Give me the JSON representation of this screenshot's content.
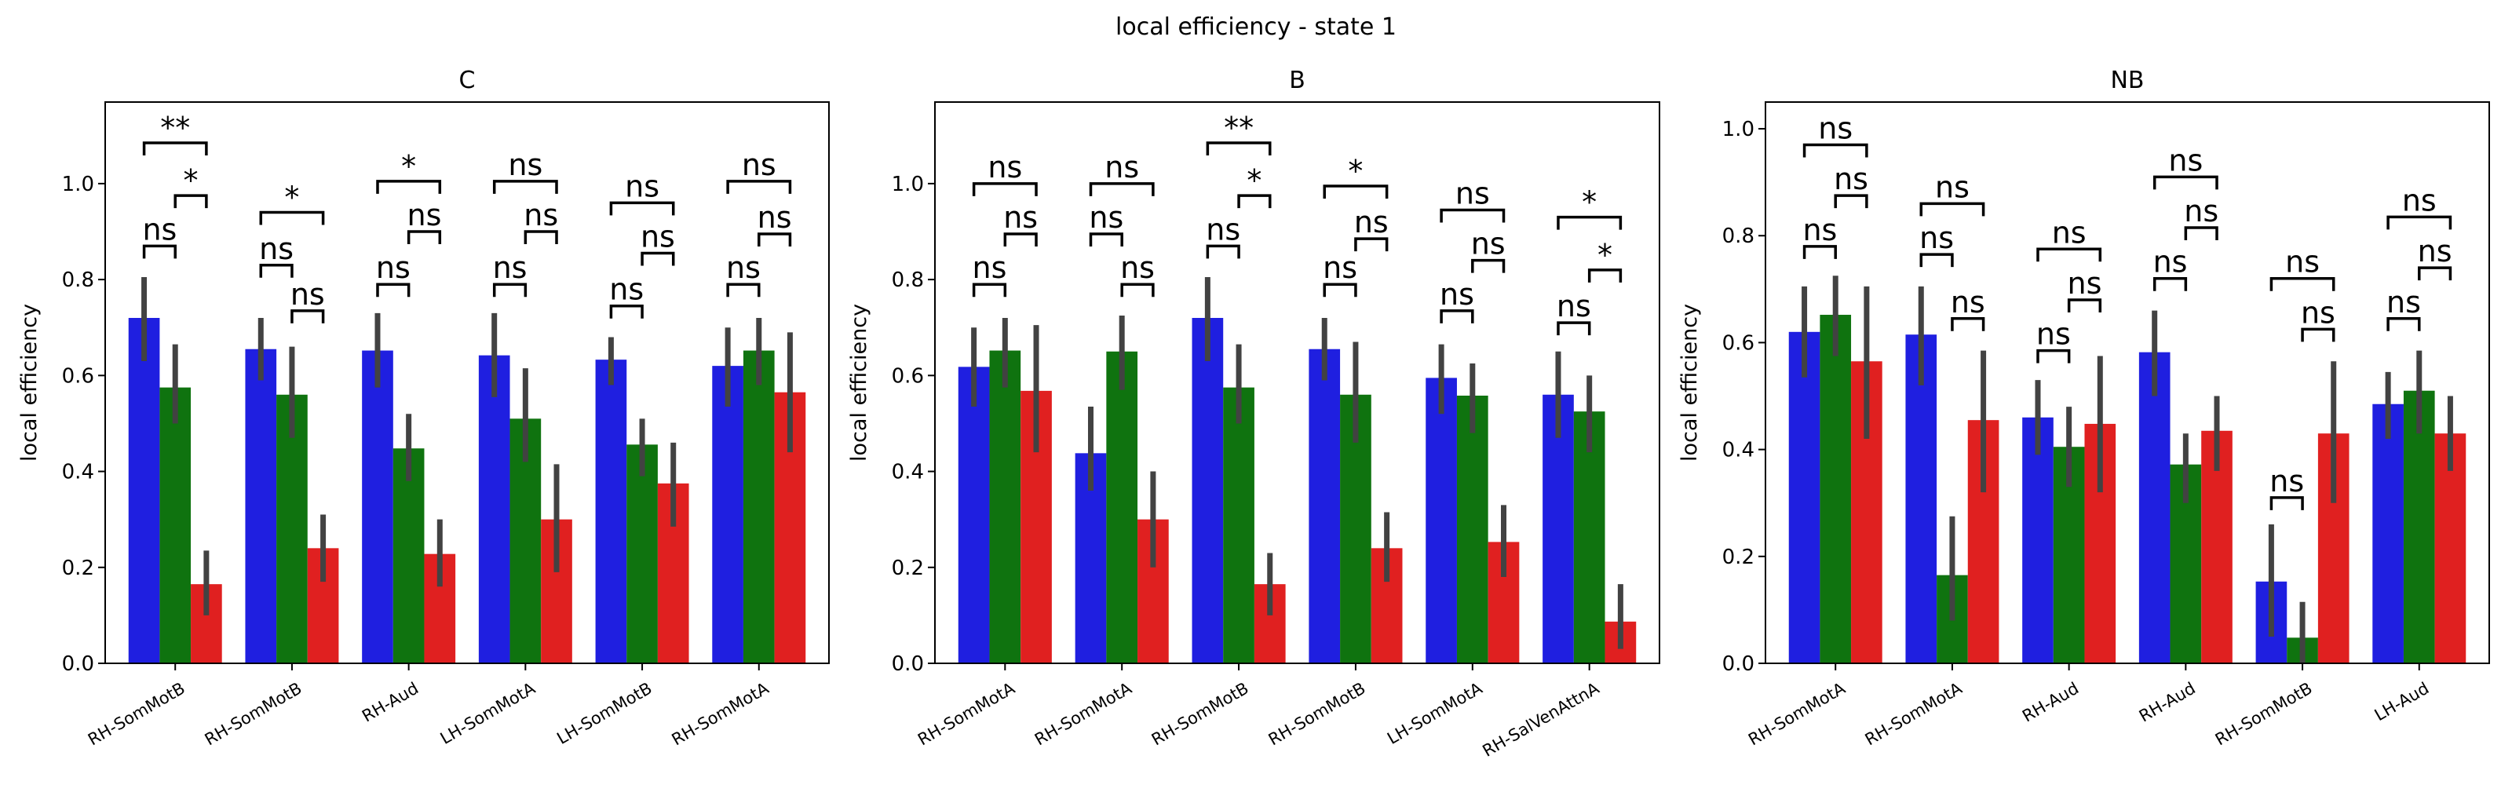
{
  "chart_data": {
    "type": "bar",
    "title": "local efficiency - state 1",
    "series_colors": [
      "#1f1fe0",
      "#0f730f",
      "#e02020"
    ],
    "panels": [
      {
        "title": "C",
        "ylabel": "local efficiency",
        "ylim": [
          0,
          1.17
        ],
        "yticks": [
          "0.0",
          "0.2",
          "0.4",
          "0.6",
          "0.8",
          "1.0"
        ],
        "categories": [
          "RH-SomMotB",
          "RH-SomMotB",
          "RH-Aud",
          "LH-SomMotA",
          "LH-SomMotB",
          "RH-SomMotA"
        ],
        "values": [
          [
            0.72,
            0.575,
            0.165
          ],
          [
            0.655,
            0.56,
            0.24
          ],
          [
            0.652,
            0.448,
            0.228
          ],
          [
            0.642,
            0.51,
            0.3
          ],
          [
            0.633,
            0.456,
            0.375
          ],
          [
            0.62,
            0.652,
            0.565
          ]
        ],
        "errors": [
          [
            [
              0.63,
              0.805
            ],
            [
              0.5,
              0.665
            ],
            [
              0.1,
              0.235
            ]
          ],
          [
            [
              0.59,
              0.72
            ],
            [
              0.47,
              0.66
            ],
            [
              0.17,
              0.31
            ]
          ],
          [
            [
              0.575,
              0.73
            ],
            [
              0.38,
              0.52
            ],
            [
              0.16,
              0.3
            ]
          ],
          [
            [
              0.555,
              0.73
            ],
            [
              0.42,
              0.615
            ],
            [
              0.19,
              0.415
            ]
          ],
          [
            [
              0.58,
              0.68
            ],
            [
              0.39,
              0.51
            ],
            [
              0.285,
              0.46
            ]
          ],
          [
            [
              0.535,
              0.7
            ],
            [
              0.58,
              0.72
            ],
            [
              0.44,
              0.69
            ]
          ]
        ],
        "annotations": [
          {
            "pair": [
              0,
              1
            ],
            "label": "ns"
          },
          {
            "pair": [
              1,
              2
            ],
            "label": "*"
          },
          {
            "pair": [
              0,
              2
            ],
            "label": "**"
          },
          {
            "pair": [
              0,
              1
            ],
            "label": "ns"
          },
          {
            "pair": [
              1,
              2
            ],
            "label": "ns"
          },
          {
            "pair": [
              0,
              2
            ],
            "label": "*"
          },
          {
            "pair": [
              0,
              1
            ],
            "label": "ns"
          },
          {
            "pair": [
              1,
              2
            ],
            "label": "ns"
          },
          {
            "pair": [
              0,
              2
            ],
            "label": "*"
          },
          {
            "pair": [
              0,
              1
            ],
            "label": "ns"
          },
          {
            "pair": [
              1,
              2
            ],
            "label": "ns"
          },
          {
            "pair": [
              0,
              2
            ],
            "label": "ns"
          },
          {
            "pair": [
              0,
              1
            ],
            "label": "ns"
          },
          {
            "pair": [
              1,
              2
            ],
            "label": "ns"
          },
          {
            "pair": [
              0,
              2
            ],
            "label": "ns"
          },
          {
            "pair": [
              0,
              1
            ],
            "label": "ns"
          },
          {
            "pair": [
              1,
              2
            ],
            "label": "ns"
          },
          {
            "pair": [
              0,
              2
            ],
            "label": "ns"
          }
        ],
        "annotation_levels": [
          [
            0.87,
            0.975,
            1.085
          ],
          [
            0.83,
            0.735,
            0.94
          ],
          [
            0.79,
            0.9,
            1.005
          ],
          [
            0.79,
            0.9,
            1.005
          ],
          [
            0.745,
            0.855,
            0.96
          ],
          [
            0.79,
            0.895,
            1.005
          ]
        ]
      },
      {
        "title": "B",
        "ylabel": "local efficiency",
        "ylim": [
          0,
          1.17
        ],
        "yticks": [
          "0.0",
          "0.2",
          "0.4",
          "0.6",
          "0.8",
          "1.0"
        ],
        "categories": [
          "RH-SomMotA",
          "RH-SomMotA",
          "RH-SomMotB",
          "RH-SomMotB",
          "LH-SomMotA",
          "RH-SalVenAttnA"
        ],
        "values": [
          [
            0.618,
            0.652,
            0.568
          ],
          [
            0.438,
            0.65,
            0.3
          ],
          [
            0.72,
            0.575,
            0.165
          ],
          [
            0.655,
            0.56,
            0.24
          ],
          [
            0.595,
            0.558,
            0.253
          ],
          [
            0.56,
            0.525,
            0.087
          ]
        ],
        "errors": [
          [
            [
              0.535,
              0.7
            ],
            [
              0.575,
              0.72
            ],
            [
              0.44,
              0.705
            ]
          ],
          [
            [
              0.36,
              0.535
            ],
            [
              0.57,
              0.725
            ],
            [
              0.2,
              0.4
            ]
          ],
          [
            [
              0.63,
              0.805
            ],
            [
              0.5,
              0.665
            ],
            [
              0.1,
              0.23
            ]
          ],
          [
            [
              0.59,
              0.72
            ],
            [
              0.46,
              0.67
            ],
            [
              0.17,
              0.315
            ]
          ],
          [
            [
              0.52,
              0.665
            ],
            [
              0.48,
              0.625
            ],
            [
              0.18,
              0.33
            ]
          ],
          [
            [
              0.47,
              0.65
            ],
            [
              0.44,
              0.6
            ],
            [
              0.03,
              0.165
            ]
          ]
        ],
        "annotations": [
          {
            "pair": [
              0,
              1
            ],
            "label": "ns"
          },
          {
            "pair": [
              1,
              2
            ],
            "label": "ns"
          },
          {
            "pair": [
              0,
              2
            ],
            "label": "ns"
          },
          {
            "pair": [
              0,
              1
            ],
            "label": "ns"
          },
          {
            "pair": [
              1,
              2
            ],
            "label": "ns"
          },
          {
            "pair": [
              0,
              2
            ],
            "label": "ns"
          },
          {
            "pair": [
              0,
              1
            ],
            "label": "ns"
          },
          {
            "pair": [
              1,
              2
            ],
            "label": "*"
          },
          {
            "pair": [
              0,
              2
            ],
            "label": "**"
          },
          {
            "pair": [
              0,
              1
            ],
            "label": "ns"
          },
          {
            "pair": [
              1,
              2
            ],
            "label": "ns"
          },
          {
            "pair": [
              0,
              2
            ],
            "label": "*"
          },
          {
            "pair": [
              0,
              1
            ],
            "label": "ns"
          },
          {
            "pair": [
              1,
              2
            ],
            "label": "ns"
          },
          {
            "pair": [
              0,
              2
            ],
            "label": "ns"
          },
          {
            "pair": [
              0,
              1
            ],
            "label": "ns"
          },
          {
            "pair": [
              1,
              2
            ],
            "label": "*"
          },
          {
            "pair": [
              0,
              2
            ],
            "label": "*"
          }
        ],
        "annotation_levels": [
          [
            0.79,
            0.895,
            1.0
          ],
          [
            0.895,
            0.79,
            1.0
          ],
          [
            0.87,
            0.975,
            1.085
          ],
          [
            0.79,
            0.885,
            0.995
          ],
          [
            0.735,
            0.84,
            0.945
          ],
          [
            0.71,
            0.82,
            0.93
          ]
        ]
      },
      {
        "title": "NB",
        "ylabel": "local efficiency",
        "ylim": [
          0,
          1.05
        ],
        "yticks": [
          "0.0",
          "0.2",
          "0.4",
          "0.6",
          "0.8",
          "1.0"
        ],
        "categories": [
          "RH-SomMotA",
          "RH-SomMotA",
          "RH-Aud",
          "RH-Aud",
          "RH-SomMotB",
          "LH-Aud"
        ],
        "values": [
          [
            0.62,
            0.652,
            0.565
          ],
          [
            0.615,
            0.165,
            0.455
          ],
          [
            0.46,
            0.405,
            0.448
          ],
          [
            0.582,
            0.372,
            0.435
          ],
          [
            0.153,
            0.048,
            0.43
          ],
          [
            0.485,
            0.51,
            0.43
          ]
        ],
        "errors": [
          [
            [
              0.535,
              0.705
            ],
            [
              0.575,
              0.725
            ],
            [
              0.42,
              0.705
            ]
          ],
          [
            [
              0.52,
              0.705
            ],
            [
              0.08,
              0.275
            ],
            [
              0.32,
              0.585
            ]
          ],
          [
            [
              0.39,
              0.53
            ],
            [
              0.33,
              0.48
            ],
            [
              0.32,
              0.575
            ]
          ],
          [
            [
              0.5,
              0.66
            ],
            [
              0.3,
              0.43
            ],
            [
              0.36,
              0.5
            ]
          ],
          [
            [
              0.05,
              0.26
            ],
            [
              0.0,
              0.115
            ],
            [
              0.3,
              0.565
            ]
          ],
          [
            [
              0.42,
              0.545
            ],
            [
              0.43,
              0.585
            ],
            [
              0.36,
              0.5
            ]
          ]
        ],
        "annotations": [
          {
            "pair": [
              0,
              1
            ],
            "label": "ns"
          },
          {
            "pair": [
              1,
              2
            ],
            "label": "ns"
          },
          {
            "pair": [
              0,
              2
            ],
            "label": "ns"
          },
          {
            "pair": [
              0,
              1
            ],
            "label": "ns"
          },
          {
            "pair": [
              1,
              2
            ],
            "label": "ns"
          },
          {
            "pair": [
              0,
              2
            ],
            "label": "ns"
          },
          {
            "pair": [
              0,
              1
            ],
            "label": "ns"
          },
          {
            "pair": [
              1,
              2
            ],
            "label": "ns"
          },
          {
            "pair": [
              0,
              2
            ],
            "label": "ns"
          },
          {
            "pair": [
              0,
              1
            ],
            "label": "ns"
          },
          {
            "pair": [
              1,
              2
            ],
            "label": "ns"
          },
          {
            "pair": [
              0,
              2
            ],
            "label": "ns"
          },
          {
            "pair": [
              0,
              1
            ],
            "label": "ns"
          },
          {
            "pair": [
              1,
              2
            ],
            "label": "ns"
          },
          {
            "pair": [
              0,
              2
            ],
            "label": "ns"
          },
          {
            "pair": [
              0,
              1
            ],
            "label": "ns"
          },
          {
            "pair": [
              1,
              2
            ],
            "label": "ns"
          },
          {
            "pair": [
              0,
              2
            ],
            "label": "ns"
          }
        ],
        "annotation_levels": [
          [
            0.78,
            0.875,
            0.97
          ],
          [
            0.765,
            0.645,
            0.86
          ],
          [
            0.585,
            0.68,
            0.775
          ],
          [
            0.72,
            0.815,
            0.91
          ],
          [
            0.31,
            0.625,
            0.72
          ],
          [
            0.645,
            0.74,
            0.835
          ]
        ]
      }
    ]
  }
}
